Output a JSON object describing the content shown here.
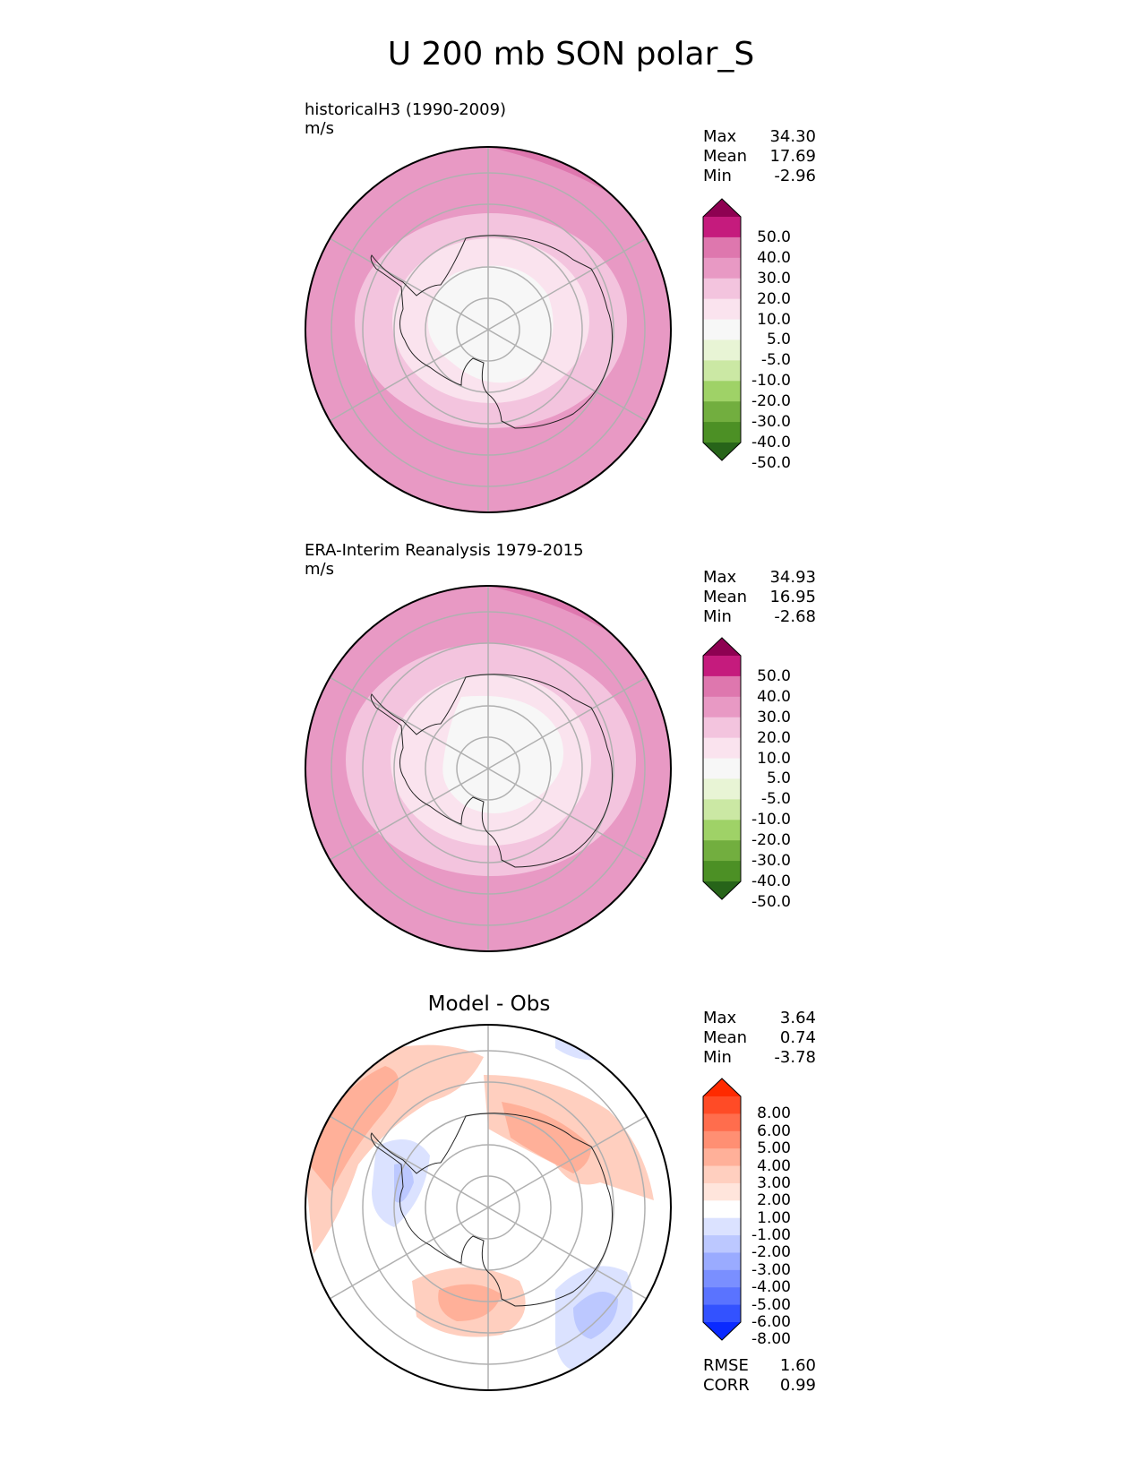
{
  "title": "U 200 mb SON polar_S",
  "panels": [
    {
      "title_line1": "historicalH3 (1990-2009)",
      "title_line2": "m/s",
      "stats": [
        {
          "label": "Max",
          "value": "34.30"
        },
        {
          "label": "Mean",
          "value": "17.69"
        },
        {
          "label": "Min",
          "value": "-2.96"
        }
      ],
      "colorbar": {
        "ticks": [
          "50.0",
          "40.0",
          "30.0",
          "20.0",
          "10.0",
          "5.0",
          "-5.0",
          "-10.0",
          "-20.0",
          "-30.0",
          "-40.0",
          "-50.0"
        ],
        "colors": [
          "#8e0152",
          "#c51b7d",
          "#de77ae",
          "#e899c4",
          "#f3c4de",
          "#fae3ee",
          "#f7f7f7",
          "#e8f4d5",
          "#cbe8a4",
          "#9fd267",
          "#72ae3f",
          "#4c9025",
          "#276419"
        ]
      }
    },
    {
      "title_line1": "ERA-Interim Reanalysis 1979-2015",
      "title_line2": "m/s",
      "stats": [
        {
          "label": "Max",
          "value": "34.93"
        },
        {
          "label": "Mean",
          "value": "16.95"
        },
        {
          "label": "Min",
          "value": "-2.68"
        }
      ],
      "colorbar": {
        "ticks": [
          "50.0",
          "40.0",
          "30.0",
          "20.0",
          "10.0",
          "5.0",
          "-5.0",
          "-10.0",
          "-20.0",
          "-30.0",
          "-40.0",
          "-50.0"
        ],
        "colors": [
          "#8e0152",
          "#c51b7d",
          "#de77ae",
          "#e899c4",
          "#f3c4de",
          "#fae3ee",
          "#f7f7f7",
          "#e8f4d5",
          "#cbe8a4",
          "#9fd267",
          "#72ae3f",
          "#4c9025",
          "#276419"
        ]
      }
    },
    {
      "center_title": "Model - Obs",
      "stats": [
        {
          "label": "Max",
          "value": "3.64"
        },
        {
          "label": "Mean",
          "value": "0.74"
        },
        {
          "label": "Min",
          "value": "-3.78"
        }
      ],
      "extra_stats": [
        {
          "label": "RMSE",
          "value": "1.60"
        },
        {
          "label": "CORR",
          "value": "0.99"
        }
      ],
      "colorbar": {
        "ticks": [
          "8.00",
          "6.00",
          "5.00",
          "4.00",
          "3.00",
          "2.00",
          "1.00",
          "-1.00",
          "-2.00",
          "-3.00",
          "-4.00",
          "-5.00",
          "-6.00",
          "-8.00"
        ],
        "colors": [
          "#ff2a00",
          "#ff4b26",
          "#ff6d4d",
          "#ff8f73",
          "#ffb099",
          "#ffcfbf",
          "#ffe5dc",
          "#ffffff",
          "#dbe2ff",
          "#bcc8ff",
          "#9aabff",
          "#7a8fff",
          "#5a73ff",
          "#3352ff",
          "#0a2aff"
        ]
      }
    }
  ]
}
